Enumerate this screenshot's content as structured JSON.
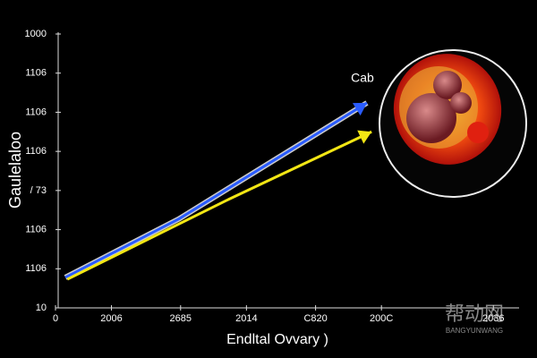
{
  "chart_data": {
    "type": "line",
    "annotation": "Cab",
    "xlabel": "Endltal Ovvary )",
    "ylabel": "Gaulelaloo",
    "watermark": {
      "title": "帮动网",
      "subtitle": "BANGYUNWANG"
    },
    "xlim": [
      0,
      7
    ],
    "ylim": [
      0,
      7
    ],
    "xticks": [
      {
        "value": 0,
        "label": "0"
      },
      {
        "value": 0.85,
        "label": "2006"
      },
      {
        "value": 1.9,
        "label": "2685"
      },
      {
        "value": 2.9,
        "label": "2014"
      },
      {
        "value": 3.95,
        "label": "C820"
      },
      {
        "value": 4.95,
        "label": "200C"
      },
      {
        "value": 6.65,
        "label": "2036"
      }
    ],
    "yticks": [
      {
        "value": 0,
        "label": "10"
      },
      {
        "value": 1,
        "label": "1106"
      },
      {
        "value": 2,
        "label": "1106"
      },
      {
        "value": 3,
        "label": "/ 73"
      },
      {
        "value": 4,
        "label": "1106"
      },
      {
        "value": 5,
        "label": "1106"
      },
      {
        "value": 6,
        "label": "1106"
      },
      {
        "value": 7,
        "label": "1000"
      }
    ],
    "series": [
      {
        "name": "blue",
        "color": "#2a5cff",
        "x": [
          0.15,
          1.87,
          4.73
        ],
        "values": [
          0.78,
          2.27,
          5.24
        ]
      },
      {
        "name": "yellow",
        "color": "#f2e614",
        "x": [
          0.18,
          2.6,
          4.8
        ],
        "values": [
          0.73,
          2.75,
          4.5
        ]
      }
    ]
  }
}
